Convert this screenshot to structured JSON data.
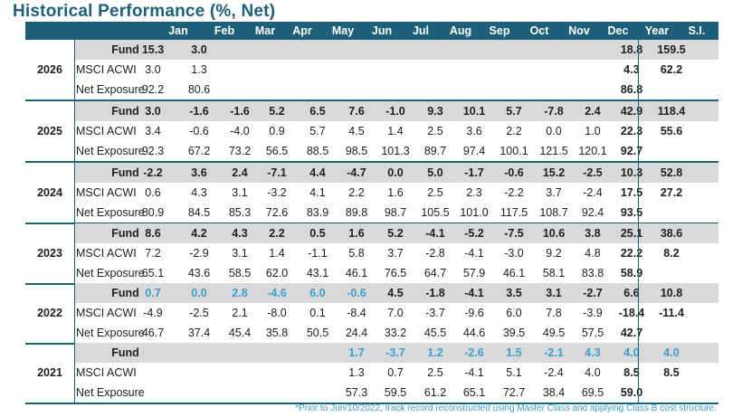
{
  "title": "Historical Performance (%, Net)",
  "columns": [
    "Jan",
    "Feb",
    "Mar",
    "Apr",
    "May",
    "Jun",
    "Jul",
    "Aug",
    "Sep",
    "Oct",
    "Nov",
    "Dec",
    "Year",
    "S.I."
  ],
  "years": [
    {
      "year": "2026",
      "rows": [
        {
          "label": "Fund",
          "values": [
            "15.3",
            "3.0",
            "",
            "",
            "",
            "",
            "",
            "",
            "",
            "",
            "",
            "",
            "18.8",
            "159.5"
          ]
        },
        {
          "label": "MSCI ACWI",
          "values": [
            "3.0",
            "1.3",
            "",
            "",
            "",
            "",
            "",
            "",
            "",
            "",
            "",
            "",
            "4.3",
            "62.2"
          ]
        },
        {
          "label": "Net Exposure",
          "values": [
            "92.2",
            "80.6",
            "",
            "",
            "",
            "",
            "",
            "",
            "",
            "",
            "",
            "",
            "86.8",
            ""
          ]
        }
      ]
    },
    {
      "year": "2025",
      "rows": [
        {
          "label": "Fund",
          "values": [
            "3.0",
            "-1.6",
            "-1.6",
            "5.2",
            "6.5",
            "7.6",
            "-1.0",
            "9.3",
            "10.1",
            "5.7",
            "-7.8",
            "2.4",
            "42.9",
            "118.4"
          ]
        },
        {
          "label": "MSCI ACWI",
          "values": [
            "3.4",
            "-0.6",
            "-4.0",
            "0.9",
            "5.7",
            "4.5",
            "1.4",
            "2.5",
            "3.6",
            "2.2",
            "0.0",
            "1.0",
            "22.3",
            "55.6"
          ]
        },
        {
          "label": "Net Exposure",
          "values": [
            "92.3",
            "67.2",
            "73.2",
            "56.5",
            "88.5",
            "98.5",
            "101.3",
            "89.7",
            "97.4",
            "100.1",
            "121.5",
            "120.1",
            "92.7",
            ""
          ]
        }
      ]
    },
    {
      "year": "2024",
      "rows": [
        {
          "label": "Fund",
          "values": [
            "-2.2",
            "3.6",
            "2.4",
            "-7.1",
            "4.4",
            "-4.7",
            "0.0",
            "5.0",
            "-1.7",
            "-0.6",
            "15.2",
            "-2.5",
            "10.3",
            "52.8"
          ]
        },
        {
          "label": "MSCI ACWI",
          "values": [
            "0.6",
            "4.3",
            "3.1",
            "-3.2",
            "4.1",
            "2.2",
            "1.6",
            "2.5",
            "2.3",
            "-2.2",
            "3.7",
            "-2.4",
            "17.5",
            "27.2"
          ]
        },
        {
          "label": "Net Exposure",
          "values": [
            "80.9",
            "84.5",
            "85.3",
            "72.6",
            "83.9",
            "89.8",
            "98.7",
            "105.5",
            "101.0",
            "117.5",
            "108.7",
            "92.4",
            "93.5",
            ""
          ]
        }
      ]
    },
    {
      "year": "2023",
      "rows": [
        {
          "label": "Fund",
          "values": [
            "8.6",
            "4.2",
            "4.3",
            "2.2",
            "0.5",
            "1.6",
            "5.2",
            "-4.1",
            "-5.2",
            "-7.5",
            "10.6",
            "3.8",
            "25.1",
            "38.6"
          ]
        },
        {
          "label": "MSCI ACWI",
          "values": [
            "7.2",
            "-2.9",
            "3.1",
            "1.4",
            "-1.1",
            "5.8",
            "3.7",
            "-2.8",
            "-4.1",
            "-3.0",
            "9.2",
            "4.8",
            "22.2",
            "8.2"
          ]
        },
        {
          "label": "Net Exposure",
          "values": [
            "65.1",
            "43.6",
            "58.5",
            "62.0",
            "43.1",
            "46.1",
            "76.5",
            "64.7",
            "57.9",
            "46.1",
            "58.1",
            "83.8",
            "58.9",
            ""
          ]
        }
      ]
    },
    {
      "year": "2022",
      "rows": [
        {
          "label": "Fund",
          "values": [
            "0.7",
            "0.0",
            "2.8",
            "-4.6",
            "6.0",
            "-0.6",
            "4.5",
            "-1.8",
            "-4.1",
            "3.5",
            "3.1",
            "-2.7",
            "6.6",
            "10.8"
          ]
        },
        {
          "label": "MSCI ACWI",
          "values": [
            "-4.9",
            "-2.5",
            "2.1",
            "-8.0",
            "0.1",
            "-8.4",
            "7.0",
            "-3.7",
            "-9.6",
            "6.0",
            "7.8",
            "-3.9",
            "-18.4",
            "-11.4"
          ]
        },
        {
          "label": "Net Exposure",
          "values": [
            "46.7",
            "37.4",
            "45.4",
            "35.8",
            "50.5",
            "24.4",
            "33.2",
            "45.5",
            "44.6",
            "39.5",
            "49.5",
            "57.5",
            "42.7",
            ""
          ]
        }
      ]
    },
    {
      "year": "2021",
      "rows": [
        {
          "label": "Fund",
          "values": [
            "",
            "",
            "",
            "",
            "",
            "1.7",
            "-3.7",
            "1.2",
            "-2.6",
            "1.5",
            "-2.1",
            "4.3",
            "4.0",
            "4.0"
          ]
        },
        {
          "label": "MSCI ACWI",
          "values": [
            "",
            "",
            "",
            "",
            "",
            "1.3",
            "0.7",
            "2.5",
            "-4.1",
            "5.1",
            "-2.4",
            "4.0",
            "8.5",
            "8.5"
          ]
        },
        {
          "label": "Net Exposure",
          "values": [
            "",
            "",
            "",
            "",
            "",
            "57.3",
            "59.5",
            "61.2",
            "65.1",
            "72.7",
            "38.4",
            "69.5",
            "59.0",
            ""
          ]
        }
      ]
    }
  ],
  "footnote": "*Prior to Jun/10/2022, track record reconstructed using Master Class and applying Class B cost structure.",
  "colors": {
    "header": "#1e5f7a",
    "shade": "#d9d9d9",
    "highlight": "#3a9fcf"
  }
}
